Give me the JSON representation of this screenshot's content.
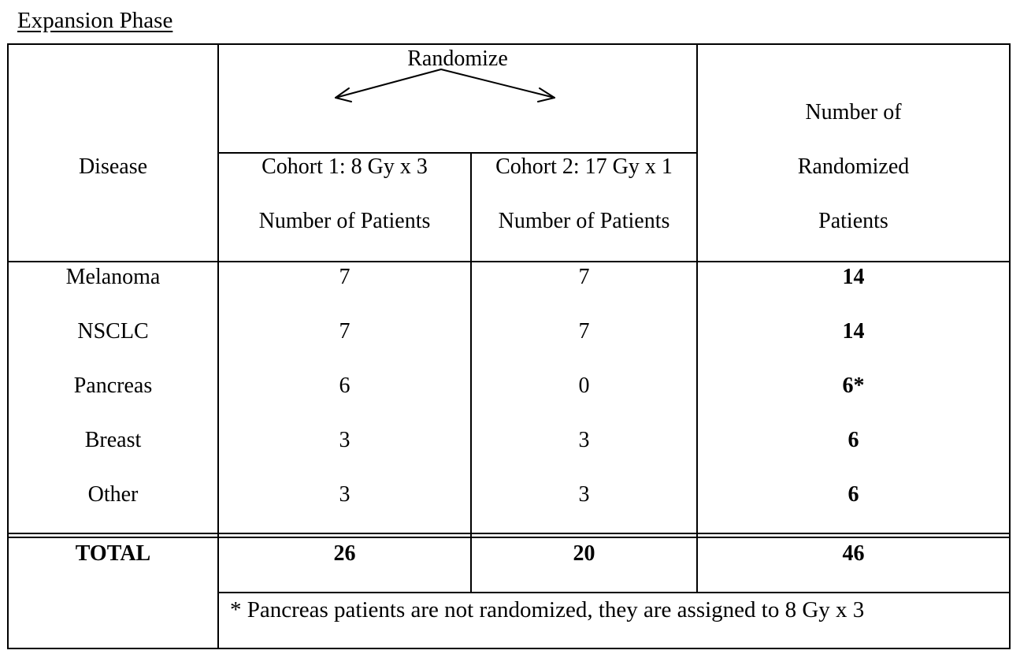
{
  "heading": "Expansion Phase",
  "header": {
    "randomize": "Randomize",
    "disease": "Disease",
    "cohort1_line1": "Cohort 1: 8 Gy x 3",
    "cohort1_line2": "Number of Patients",
    "cohort2_line1": "Cohort 2: 17 Gy x 1",
    "cohort2_line2": "Number of Patients",
    "total_line1": "Number of",
    "total_line2": "Randomized",
    "total_line3": "Patients"
  },
  "rows": [
    {
      "disease": "Melanoma",
      "cohort1": "7",
      "cohort2": "7",
      "total": "14"
    },
    {
      "disease": "NSCLC",
      "cohort1": "7",
      "cohort2": "7",
      "total": "14"
    },
    {
      "disease": "Pancreas",
      "cohort1": "6",
      "cohort2": "0",
      "total": "6*"
    },
    {
      "disease": "Breast",
      "cohort1": "3",
      "cohort2": "3",
      "total": "6"
    },
    {
      "disease": "Other",
      "cohort1": "3",
      "cohort2": "3",
      "total": "6"
    }
  ],
  "totals": {
    "label": "TOTAL",
    "cohort1": "26",
    "cohort2": "20",
    "total": "46"
  },
  "footnote": "* Pancreas patients are not randomized, they are assigned to 8 Gy x 3"
}
